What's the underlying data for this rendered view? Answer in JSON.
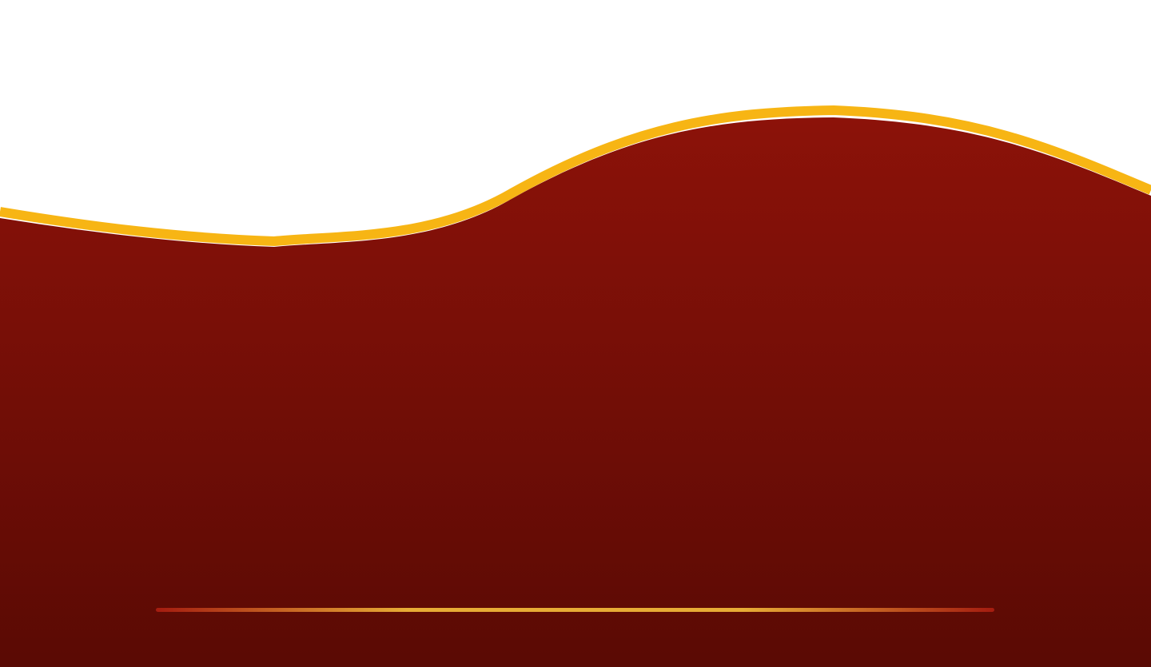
{
  "colors": {
    "background": "#ffffff",
    "panel_top": "#8c1209",
    "panel_bottom": "#5a0a04",
    "border_gold": "#f7b514",
    "line_edge": "#a51c10",
    "line_center": "#e7ac36"
  }
}
